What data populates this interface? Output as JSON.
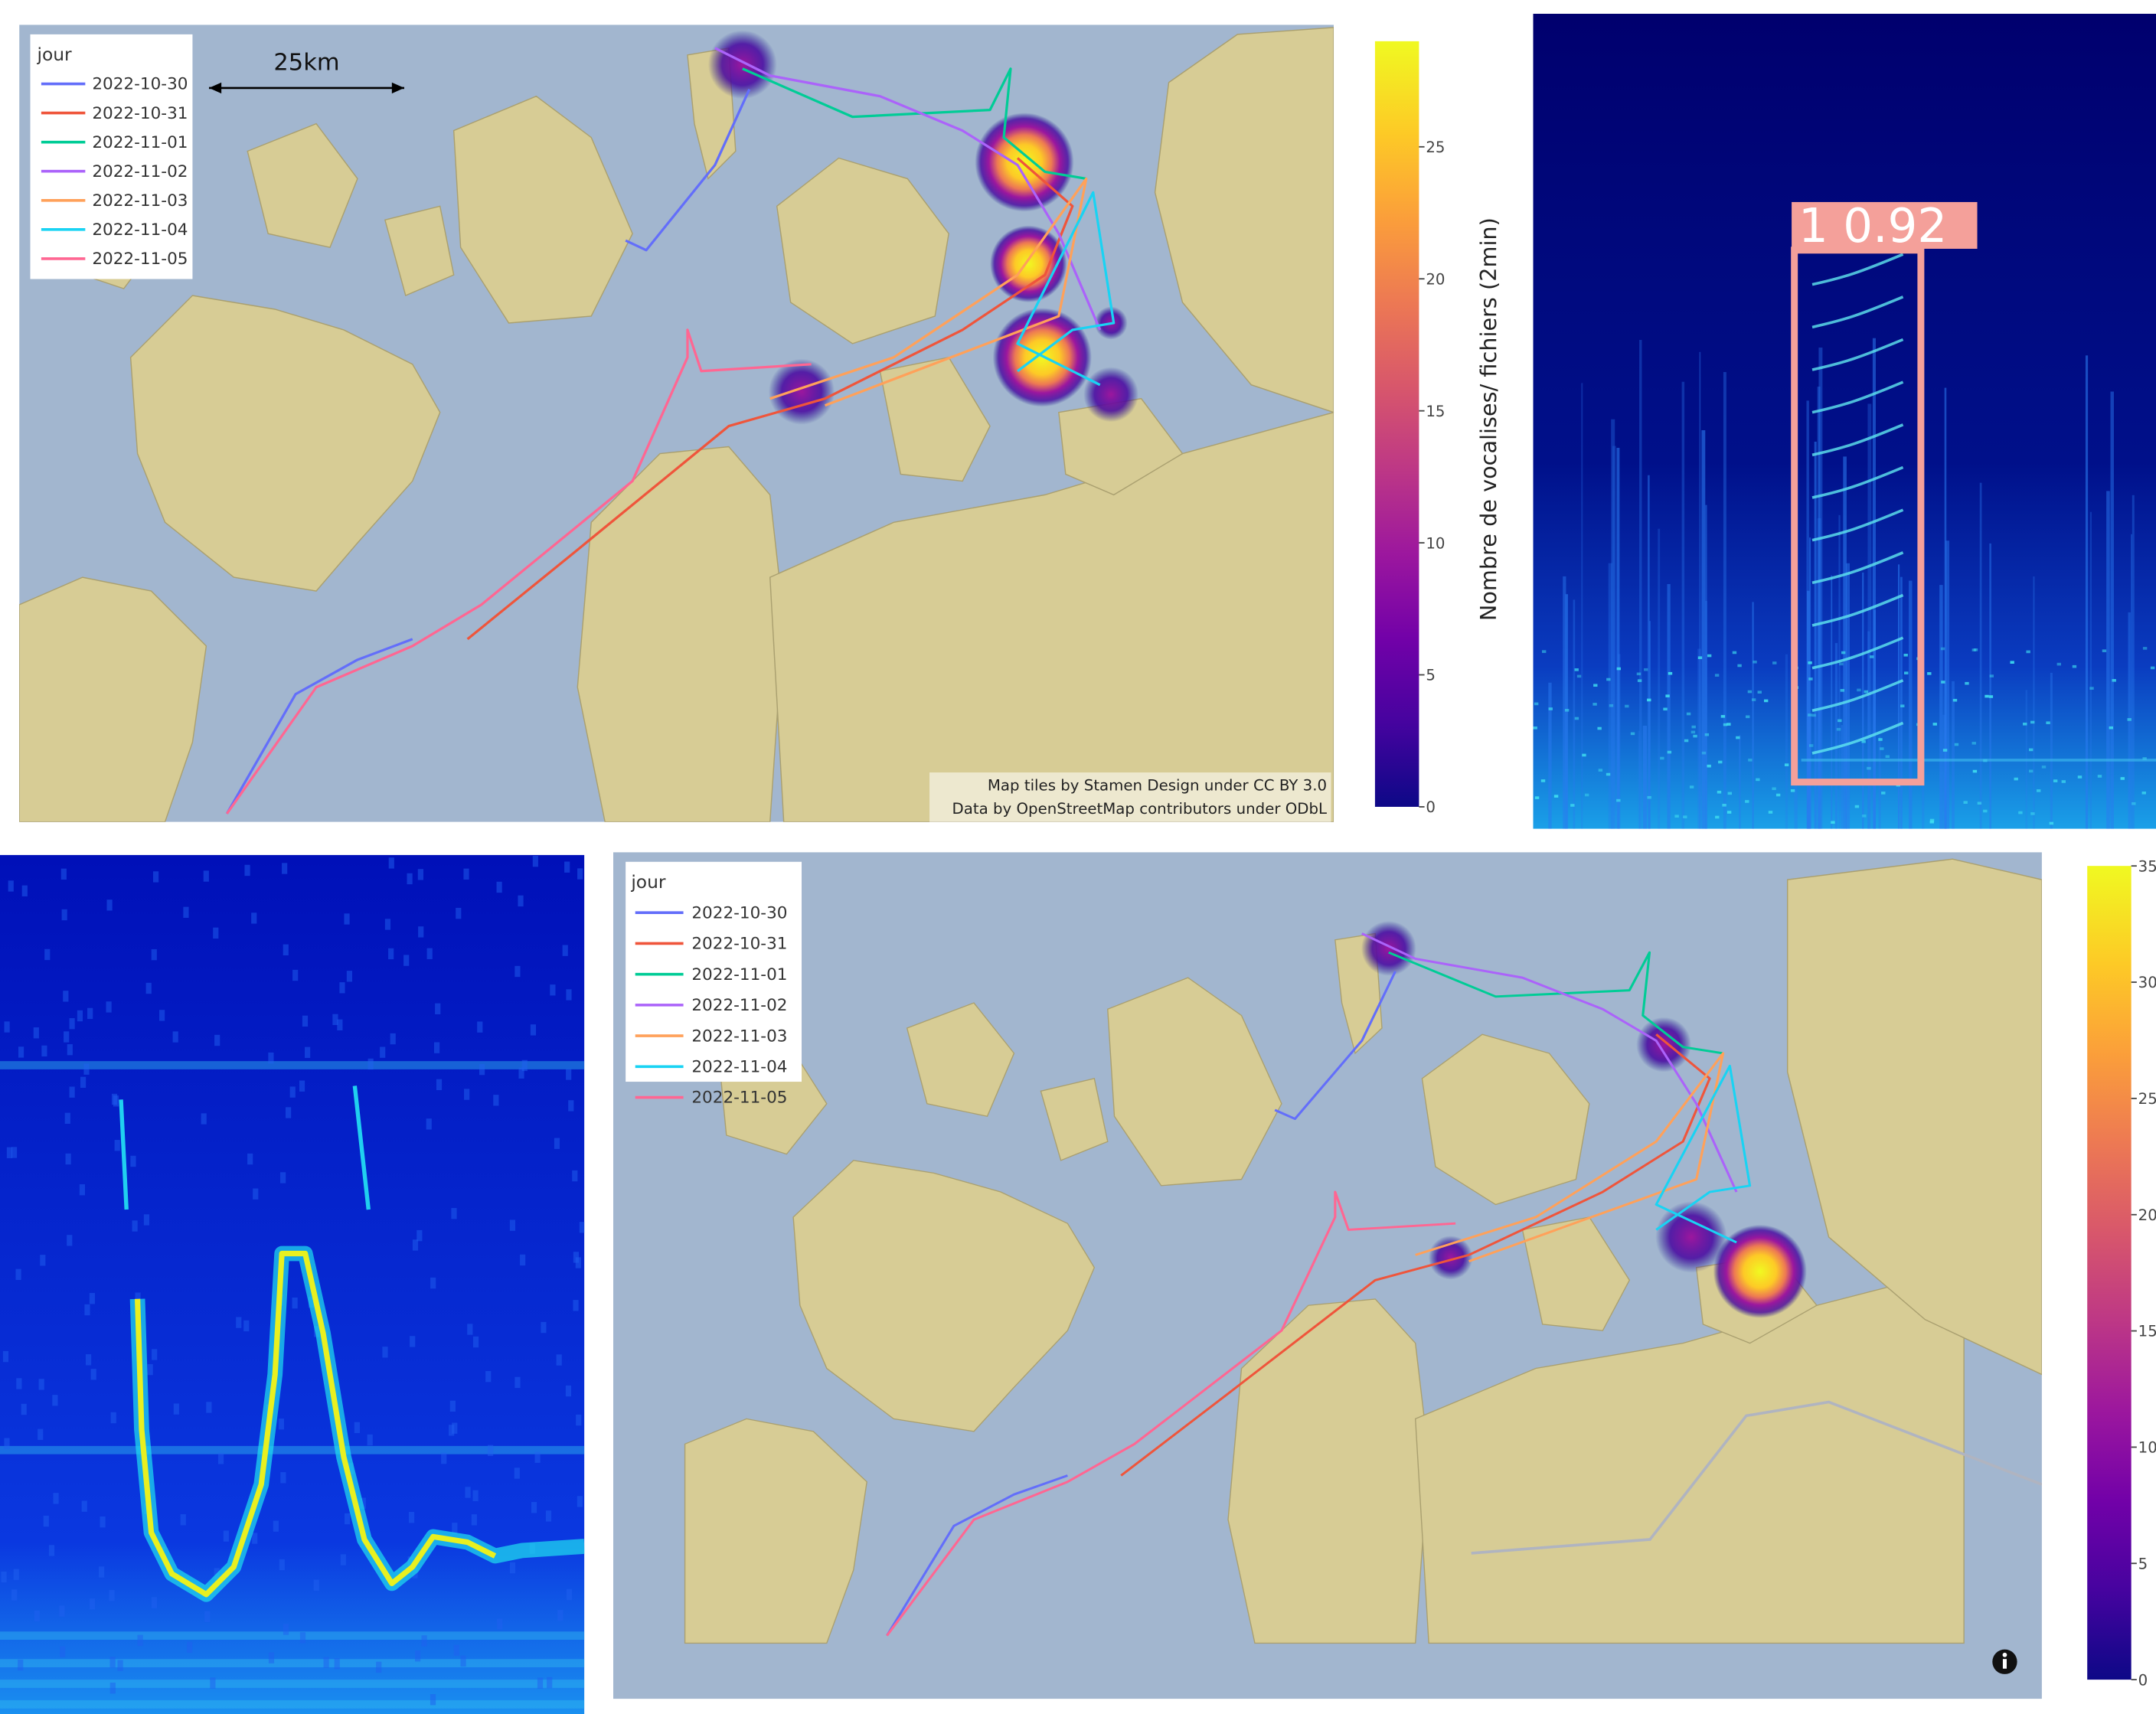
{
  "top_map": {
    "legend": {
      "title": "jour",
      "entries": [
        {
          "label": "2022-10-30",
          "color": "#636efa"
        },
        {
          "label": "2022-10-31",
          "color": "#ef553b"
        },
        {
          "label": "2022-11-01",
          "color": "#00cc96"
        },
        {
          "label": "2022-11-02",
          "color": "#ab63fa"
        },
        {
          "label": "2022-11-03",
          "color": "#ffa15a"
        },
        {
          "label": "2022-11-04",
          "color": "#19d3f3"
        },
        {
          "label": "2022-11-05",
          "color": "#ff6692"
        }
      ]
    },
    "scale_bar": "25km",
    "attribution": [
      "Map tiles by Stamen Design under CC BY 3.0",
      "Data by OpenStreetMap contributors under ODbL"
    ],
    "colorbar": {
      "title": "Nombre de vocalises/ fichiers (2min)",
      "range": [
        0,
        29
      ],
      "ticks": [
        0,
        5,
        10,
        15,
        20,
        25
      ]
    }
  },
  "detection": {
    "label": "1 0.92"
  },
  "bottom_map": {
    "legend": {
      "title": "jour",
      "entries": [
        {
          "label": "2022-10-30",
          "color": "#636efa"
        },
        {
          "label": "2022-10-31",
          "color": "#ef553b"
        },
        {
          "label": "2022-11-01",
          "color": "#00cc96"
        },
        {
          "label": "2022-11-02",
          "color": "#ab63fa"
        },
        {
          "label": "2022-11-03",
          "color": "#ffa15a"
        },
        {
          "label": "2022-11-04",
          "color": "#19d3f3"
        },
        {
          "label": "2022-11-05",
          "color": "#ff6692"
        }
      ]
    },
    "colorbar": {
      "range": [
        0,
        35
      ],
      "ticks": [
        0,
        5,
        10,
        15,
        20,
        25,
        30,
        35
      ]
    }
  }
}
